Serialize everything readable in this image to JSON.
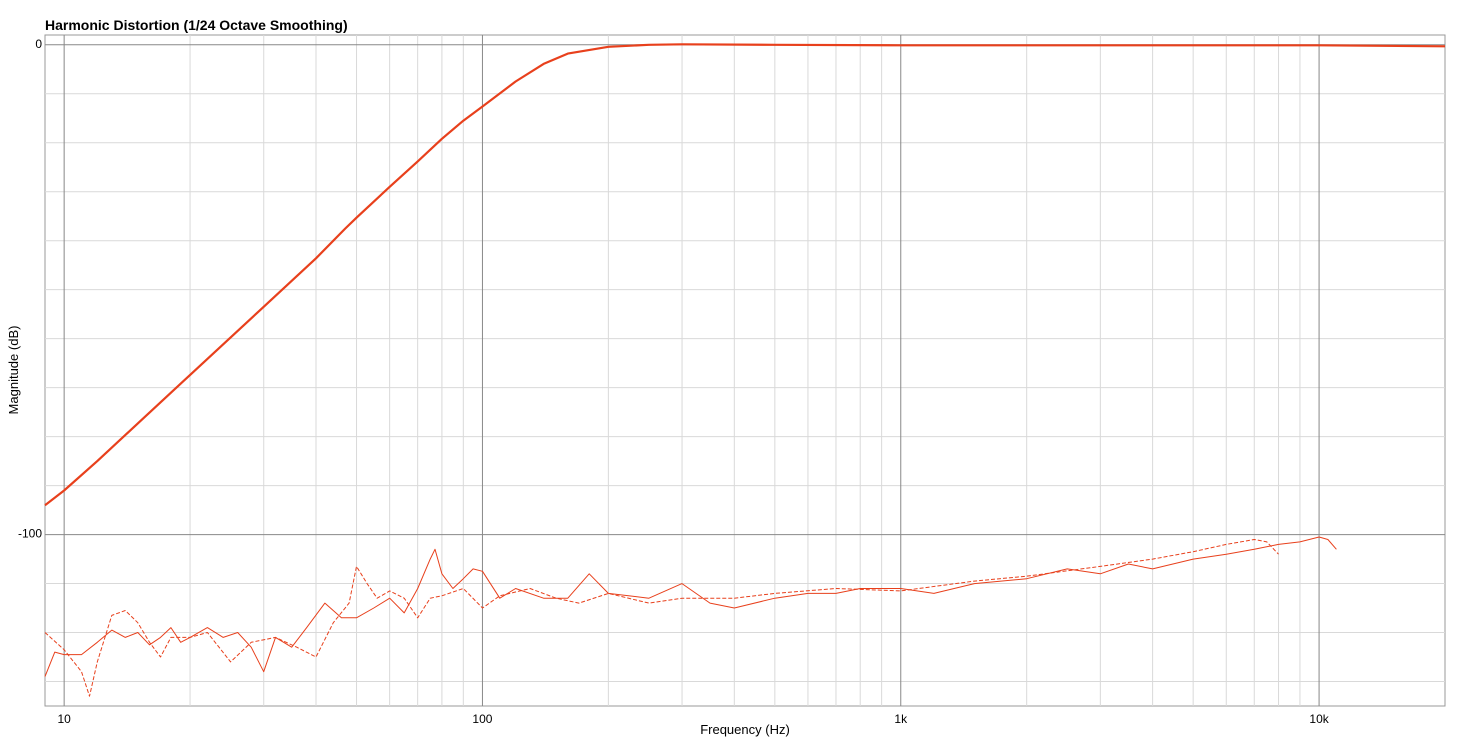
{
  "chart_data": {
    "type": "line",
    "title": "Harmonic Distortion (1/24 Octave Smoothing)",
    "xlabel": "Frequency (Hz)",
    "ylabel": "Magnitude (dB)",
    "xscale": "log",
    "grid": true,
    "xlim": [
      9,
      20000
    ],
    "ylim": [
      -135,
      2
    ],
    "xticks": [
      10,
      100,
      {
        "value": 1000,
        "label": "1k"
      },
      {
        "value": 10000,
        "label": "10k"
      }
    ],
    "x_minor_ticks": [
      20,
      30,
      40,
      50,
      60,
      70,
      80,
      90,
      200,
      300,
      400,
      500,
      600,
      700,
      800,
      900,
      2000,
      3000,
      4000,
      5000,
      6000,
      7000,
      8000,
      9000
    ],
    "yticks": [
      0,
      -100
    ],
    "y_minor_ticks": [
      -10,
      -20,
      -30,
      -40,
      -50,
      -60,
      -70,
      -80,
      -90,
      -110,
      -120,
      -130
    ],
    "series": [
      {
        "color": "#e8401c",
        "width": 2.2,
        "dash": "none",
        "x": [
          9,
          10,
          12,
          15,
          20,
          30,
          40,
          47,
          50,
          60,
          70,
          80,
          90,
          100,
          120,
          140,
          160,
          200,
          250,
          300,
          500,
          1000,
          5000,
          10000,
          20000
        ],
        "values": [
          -94,
          -91,
          -85,
          -77.3,
          -67.4,
          -53.5,
          -43.6,
          -37.5,
          -35.3,
          -29,
          -23.8,
          -19.2,
          -15.5,
          -12.6,
          -7.5,
          -3.9,
          -1.8,
          -0.4,
          0,
          0.1,
          0,
          -0.1,
          -0.1,
          -0.1,
          -0.3
        ]
      },
      {
        "color": "#e8401c",
        "width": 1,
        "dash": "none",
        "x": [
          9,
          9.5,
          10,
          11,
          12,
          13,
          14,
          15,
          16,
          17,
          18,
          19,
          20,
          22,
          24,
          26,
          28,
          30,
          32,
          35,
          38,
          42,
          46,
          50,
          55,
          60,
          65,
          70,
          75,
          77,
          80,
          85,
          90,
          95,
          100,
          110,
          120,
          140,
          160,
          180,
          200,
          250,
          300,
          350,
          400,
          500,
          600,
          700,
          800,
          1000,
          1200,
          1500,
          2000,
          2500,
          3000,
          3500,
          4000,
          5000,
          6000,
          7000,
          8000,
          9000,
          10000,
          10500,
          11000
        ],
        "values": [
          -129,
          -124,
          -124.5,
          -124.5,
          -122,
          -119.5,
          -121,
          -120,
          -122.5,
          -121,
          -119,
          -122,
          -121,
          -119,
          -121,
          -120,
          -123,
          -128,
          -121,
          -123,
          -119,
          -114,
          -117,
          -117,
          -115,
          -113,
          -116,
          -111,
          -105,
          -103,
          -108,
          -111,
          -109,
          -107,
          -107.5,
          -113,
          -111,
          -113,
          -113,
          -108,
          -112,
          -113,
          -110,
          -114,
          -115,
          -113,
          -112,
          -112,
          -111,
          -111,
          -112,
          -110,
          -109,
          -107,
          -108,
          -106,
          -107,
          -105,
          -104,
          -103,
          -102,
          -101.5,
          -100.5,
          -101,
          -103
        ]
      },
      {
        "color": "#e8401c",
        "width": 1,
        "dash": "4 2",
        "x": [
          9,
          10,
          11,
          11.5,
          12,
          13,
          14,
          15,
          16,
          17,
          18,
          20,
          22,
          25,
          28,
          32,
          36,
          40,
          44,
          48,
          50,
          53,
          56,
          60,
          65,
          70,
          75,
          80,
          90,
          100,
          110,
          130,
          150,
          170,
          200,
          250,
          300,
          400,
          500,
          700,
          1000,
          1500,
          2000,
          3000,
          4000,
          5000,
          6000,
          7000,
          7500,
          8000
        ],
        "values": [
          -120,
          -123.5,
          -128,
          -133,
          -126,
          -116.5,
          -115.5,
          -118,
          -122,
          -125,
          -121,
          -121,
          -120,
          -126,
          -122,
          -121,
          -123,
          -125,
          -118,
          -114,
          -106.5,
          -110,
          -113,
          -111.5,
          -113,
          -117,
          -113,
          -112.5,
          -111,
          -115,
          -112.5,
          -111,
          -113,
          -114,
          -112,
          -114,
          -113,
          -113,
          -112,
          -111,
          -111.5,
          -109.5,
          -108.5,
          -106.5,
          -105,
          -103.5,
          -102,
          -101,
          -101.5,
          -104
        ]
      }
    ]
  }
}
